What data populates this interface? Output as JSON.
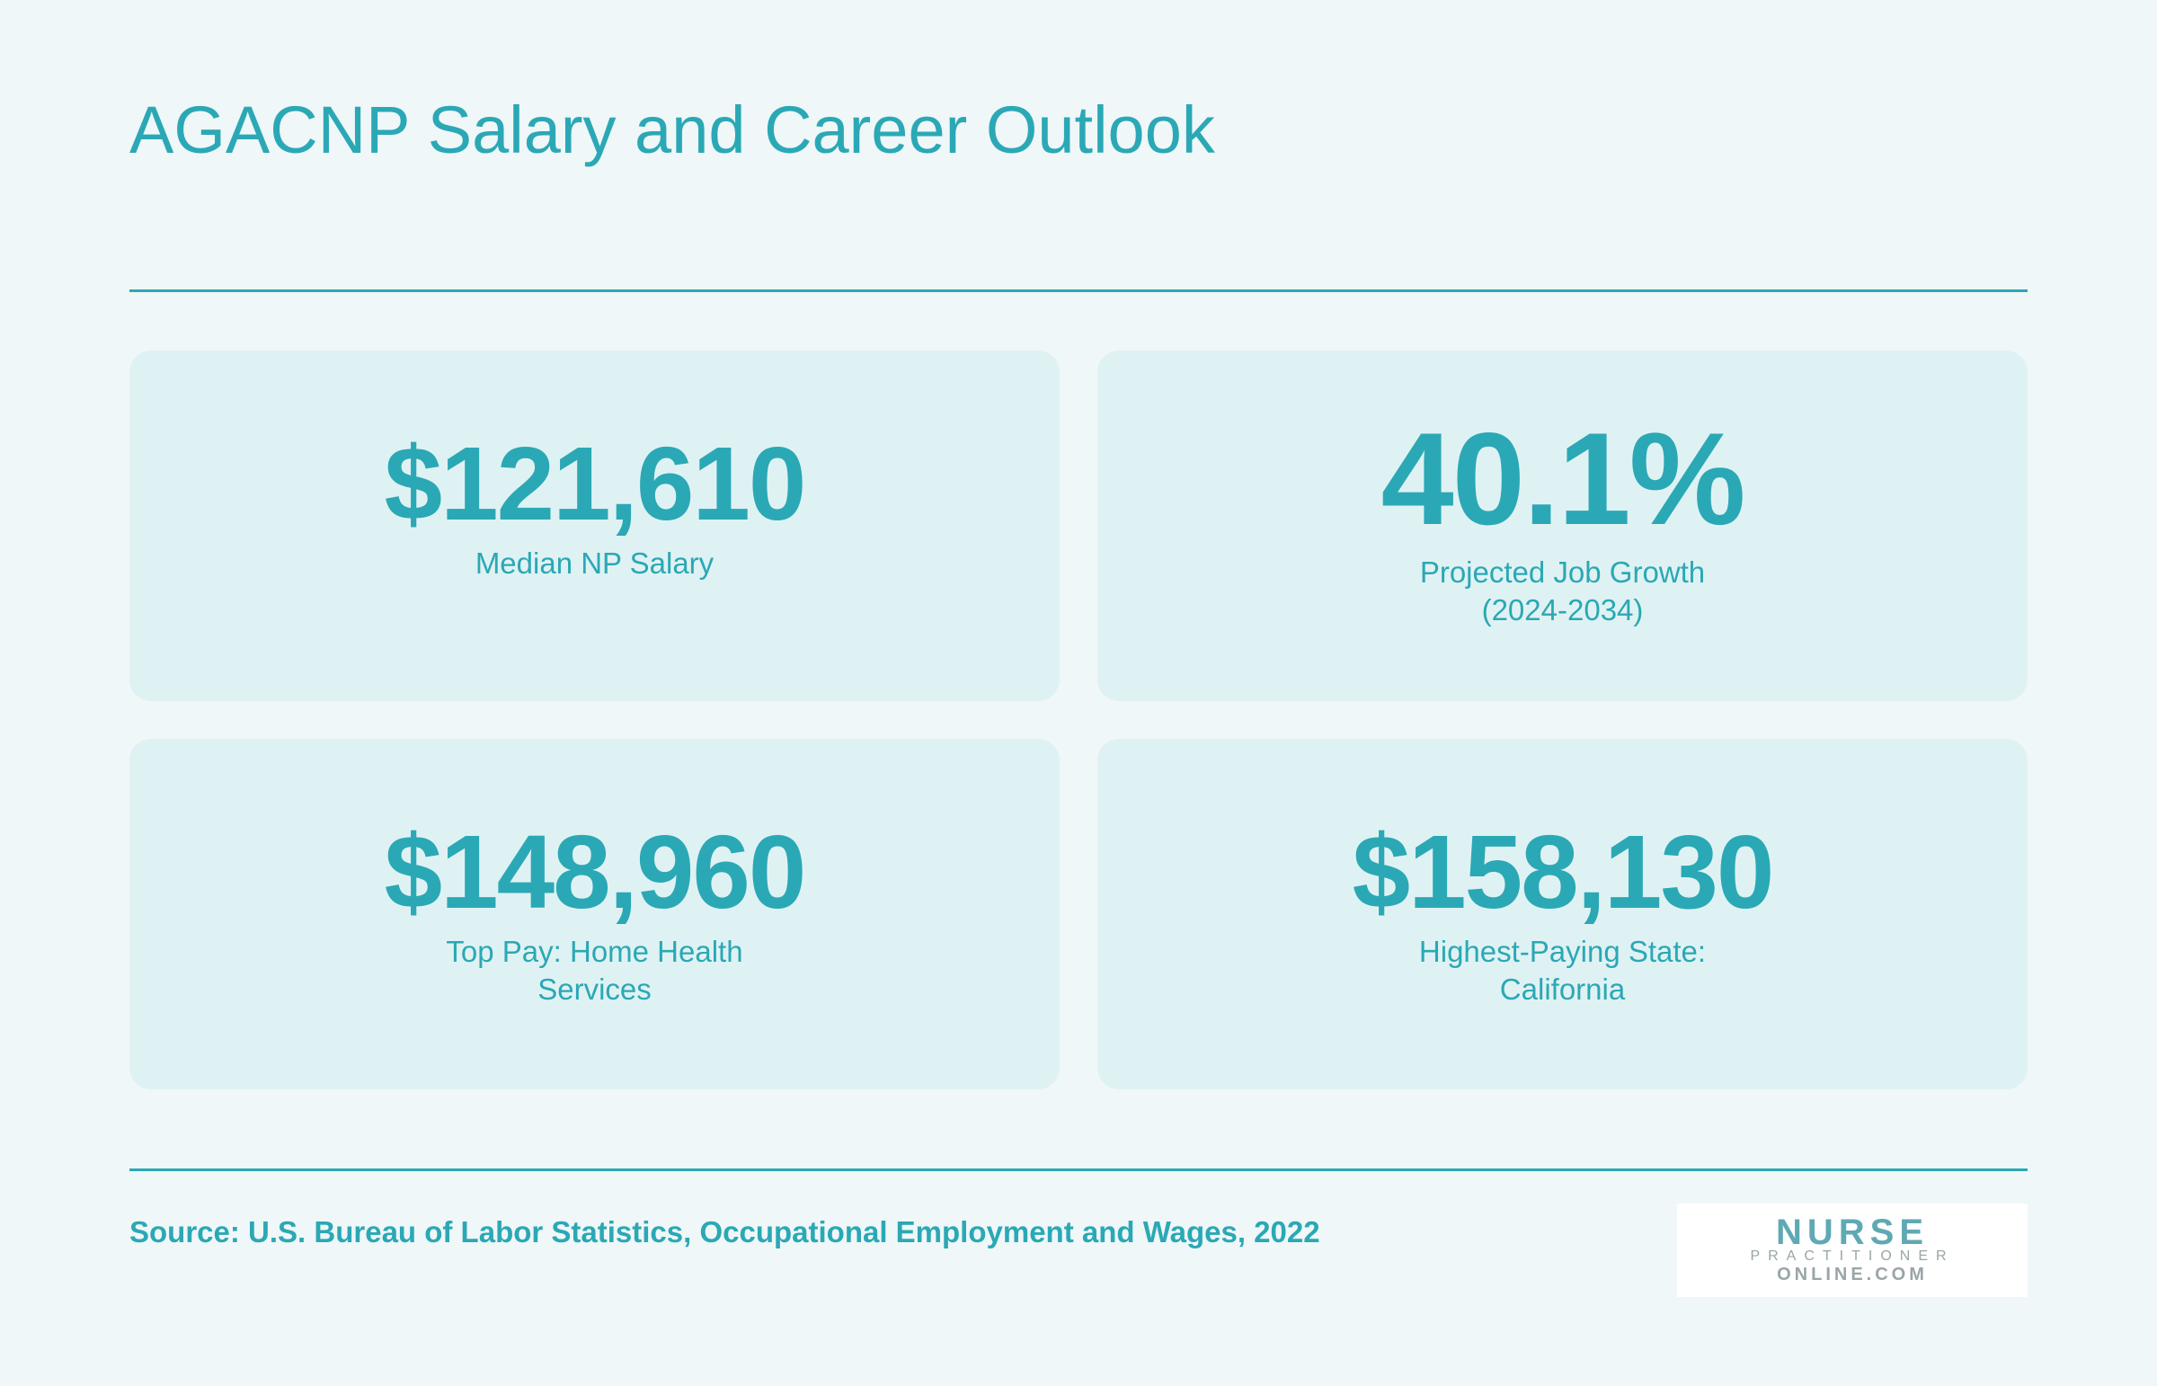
{
  "header": {
    "title": "AGACNP Salary and Career Outlook"
  },
  "cards": [
    {
      "value": "$121,610",
      "label": "Median NP Salary"
    },
    {
      "value": "40.1%",
      "label": "Projected Job Growth (2024-2034)"
    },
    {
      "value": "$148,960",
      "label": "Top Pay: Home Health Services"
    },
    {
      "value": "$158,130",
      "label": "Highest-Paying State: California"
    }
  ],
  "footer": {
    "source": "Source: U.S. Bureau of Labor Statistics, Occupational Employment and Wages, 2022",
    "logo": {
      "line1": "NURSE",
      "line2": "PRACTITIONER",
      "line3": "ONLINE.COM"
    }
  }
}
